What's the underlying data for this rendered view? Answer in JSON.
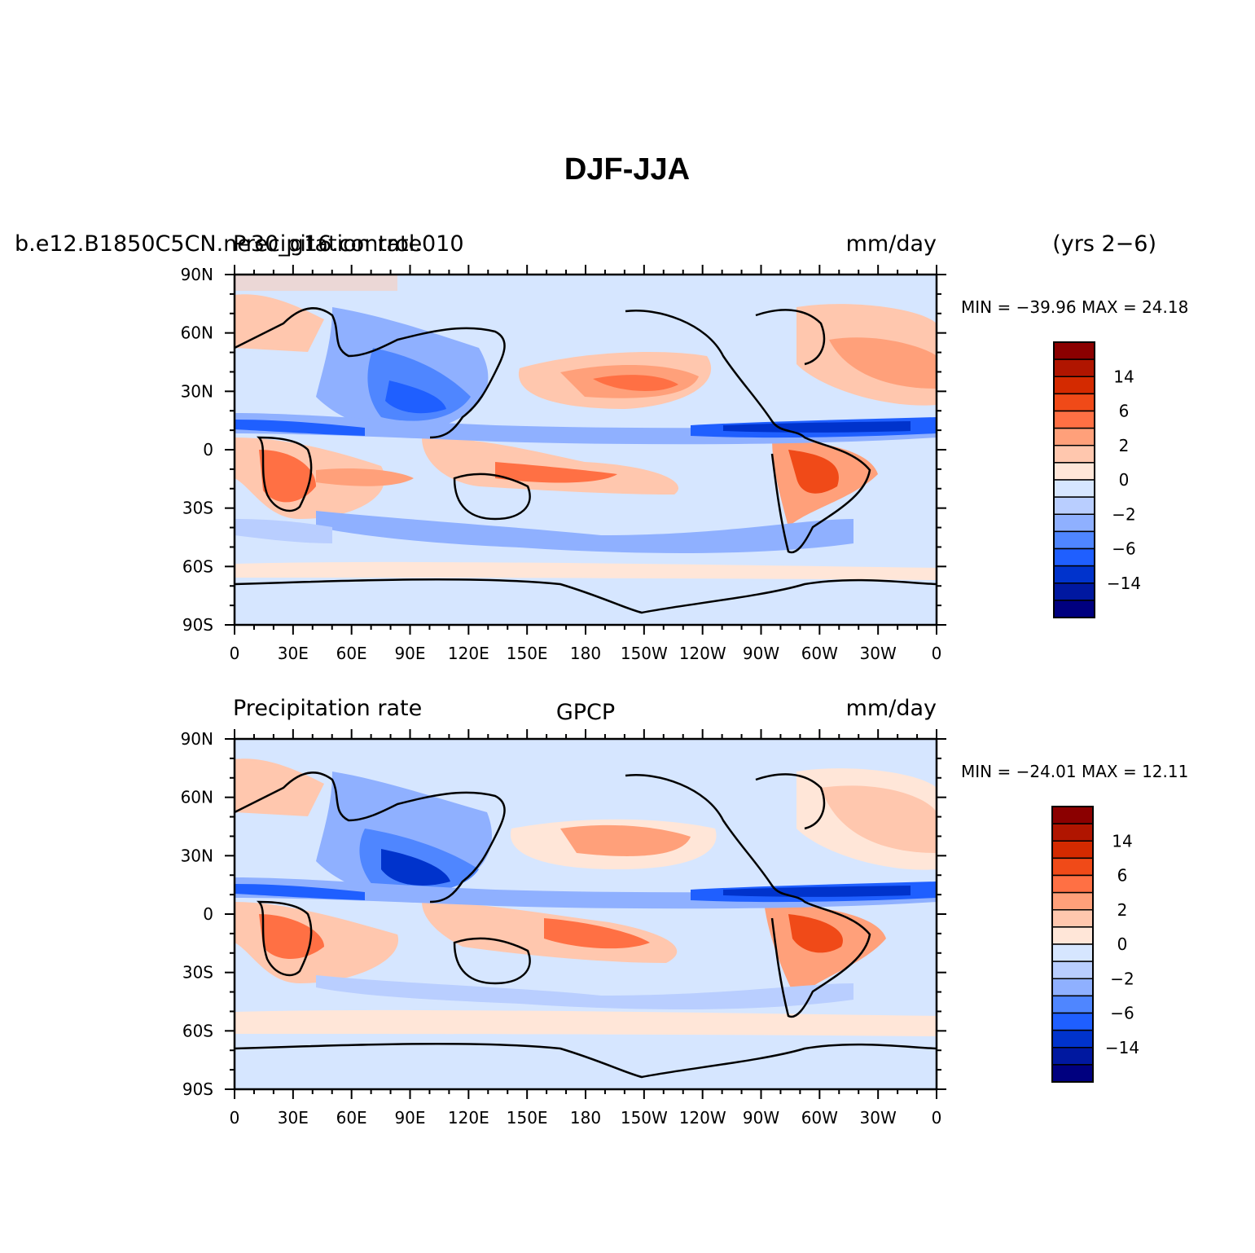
{
  "figure": {
    "title": "DJF-JJA",
    "years_label": "(yrs 2−6)"
  },
  "colors": {
    "levels": [
      "#00007f",
      "#0018a0",
      "#0033cc",
      "#1f5fff",
      "#4f86ff",
      "#8fb0ff",
      "#b9ceff",
      "#d6e6ff",
      "#ffe6d8",
      "#ffc7ae",
      "#ffa07a",
      "#ff7044",
      "#f04a18",
      "#d42a00",
      "#b01500",
      "#8b0000"
    ],
    "land_outline": "#000000"
  },
  "colorbar": {
    "labels": [
      "14",
      "6",
      "2",
      "0",
      "−2",
      "−6",
      "−14"
    ]
  },
  "panels": [
    {
      "left_title": "b.e12.B1850C5CN.ne30_g16.control.010",
      "left_title_overlap": "Precipitation rate",
      "center_title": "",
      "right_title": "mm/day",
      "stats": "MIN = −39.96 MAX =  24.18"
    },
    {
      "left_title": "Precipitation rate",
      "left_title_overlap": "",
      "center_title": "GPCP",
      "right_title": "mm/day",
      "stats": "MIN = −24.01 MAX =  12.11"
    }
  ],
  "axes": {
    "lat_labels": [
      "90N",
      "60N",
      "30N",
      "0",
      "30S",
      "60S",
      "90S"
    ],
    "lon_labels": [
      "0",
      "30E",
      "60E",
      "90E",
      "120E",
      "150E",
      "180",
      "150W",
      "120W",
      "90W",
      "60W",
      "30W",
      "0"
    ]
  }
}
